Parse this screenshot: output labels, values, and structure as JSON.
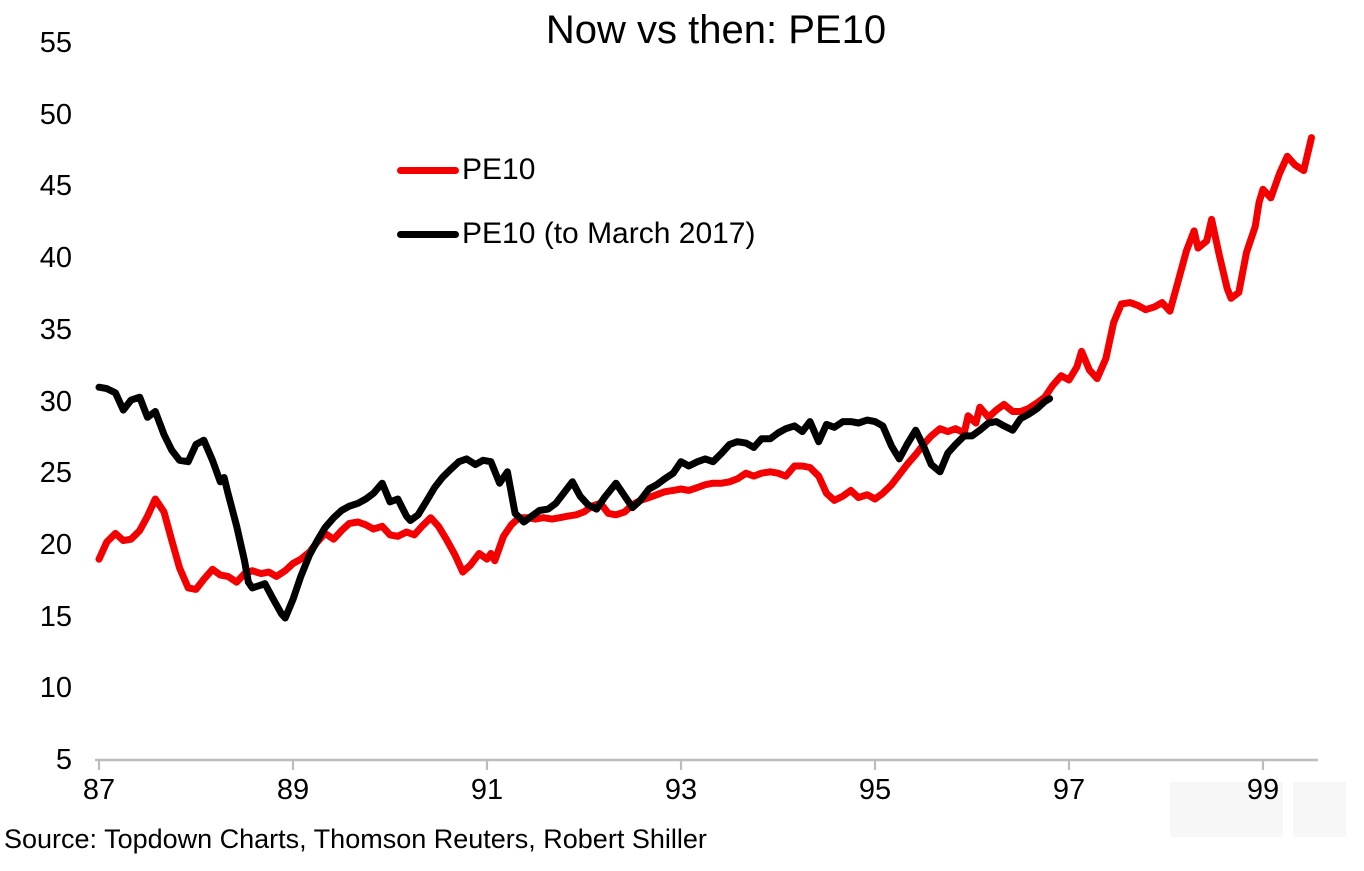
{
  "title": "Now vs then: PE10",
  "source": "Source: Topdown Charts, Thomson Reuters, Robert Shiller",
  "colors": {
    "pe10_now": "#f40000",
    "pe10_then": "#000000",
    "axis": "#bdbdbd",
    "text": "#000000"
  },
  "legend": {
    "items": [
      {
        "label": "PE10",
        "color": "#f40000"
      },
      {
        "label": "PE10 (to March 2017)",
        "color": "#000000"
      }
    ]
  },
  "chart_data": {
    "type": "line",
    "title": "Now vs then: PE10",
    "xlabel": "",
    "ylabel": "",
    "x_ticks": [
      87,
      89,
      91,
      93,
      95,
      97,
      99
    ],
    "y_ticks": [
      5,
      10,
      15,
      20,
      25,
      30,
      35,
      40,
      45,
      50,
      55
    ],
    "xlim": [
      87,
      99.6
    ],
    "ylim": [
      5,
      55
    ],
    "grid": false,
    "legend_position": "upper-left-inside",
    "series": [
      {
        "name": "PE10",
        "color": "#f40000",
        "points": [
          [
            87.0,
            19.0
          ],
          [
            87.08,
            20.2
          ],
          [
            87.17,
            20.8
          ],
          [
            87.25,
            20.3
          ],
          [
            87.33,
            20.4
          ],
          [
            87.42,
            21.0
          ],
          [
            87.5,
            22.0
          ],
          [
            87.58,
            23.2
          ],
          [
            87.67,
            22.3
          ],
          [
            87.75,
            20.3
          ],
          [
            87.83,
            18.4
          ],
          [
            87.92,
            17.0
          ],
          [
            88.0,
            16.9
          ],
          [
            88.08,
            17.6
          ],
          [
            88.17,
            18.3
          ],
          [
            88.25,
            17.9
          ],
          [
            88.33,
            17.8
          ],
          [
            88.42,
            17.4
          ],
          [
            88.5,
            18.0
          ],
          [
            88.58,
            18.2
          ],
          [
            88.67,
            18.0
          ],
          [
            88.75,
            18.1
          ],
          [
            88.83,
            17.8
          ],
          [
            88.92,
            18.2
          ],
          [
            89.0,
            18.7
          ],
          [
            89.08,
            19.0
          ],
          [
            89.17,
            19.5
          ],
          [
            89.25,
            20.2
          ],
          [
            89.33,
            20.8
          ],
          [
            89.42,
            20.4
          ],
          [
            89.5,
            21.0
          ],
          [
            89.58,
            21.5
          ],
          [
            89.67,
            21.6
          ],
          [
            89.75,
            21.4
          ],
          [
            89.83,
            21.1
          ],
          [
            89.92,
            21.3
          ],
          [
            90.0,
            20.7
          ],
          [
            90.08,
            20.6
          ],
          [
            90.17,
            20.9
          ],
          [
            90.25,
            20.7
          ],
          [
            90.33,
            21.3
          ],
          [
            90.42,
            21.9
          ],
          [
            90.5,
            21.3
          ],
          [
            90.58,
            20.4
          ],
          [
            90.67,
            19.3
          ],
          [
            90.75,
            18.1
          ],
          [
            90.83,
            18.6
          ],
          [
            90.92,
            19.4
          ],
          [
            91.0,
            19.0
          ],
          [
            91.04,
            19.4
          ],
          [
            91.08,
            18.9
          ],
          [
            91.17,
            20.6
          ],
          [
            91.25,
            21.4
          ],
          [
            91.33,
            21.9
          ],
          [
            91.42,
            21.9
          ],
          [
            91.5,
            21.8
          ],
          [
            91.58,
            21.9
          ],
          [
            91.67,
            21.8
          ],
          [
            91.75,
            21.9
          ],
          [
            91.83,
            22.0
          ],
          [
            91.92,
            22.1
          ],
          [
            92.0,
            22.3
          ],
          [
            92.08,
            22.7
          ],
          [
            92.17,
            22.9
          ],
          [
            92.25,
            22.2
          ],
          [
            92.33,
            22.1
          ],
          [
            92.42,
            22.3
          ],
          [
            92.5,
            22.8
          ],
          [
            92.58,
            23.1
          ],
          [
            92.67,
            23.3
          ],
          [
            92.75,
            23.5
          ],
          [
            92.83,
            23.7
          ],
          [
            92.92,
            23.8
          ],
          [
            93.0,
            23.9
          ],
          [
            93.08,
            23.8
          ],
          [
            93.17,
            24.0
          ],
          [
            93.25,
            24.2
          ],
          [
            93.33,
            24.3
          ],
          [
            93.42,
            24.3
          ],
          [
            93.5,
            24.4
          ],
          [
            93.58,
            24.6
          ],
          [
            93.67,
            25.0
          ],
          [
            93.75,
            24.8
          ],
          [
            93.83,
            25.0
          ],
          [
            93.92,
            25.1
          ],
          [
            94.0,
            25.0
          ],
          [
            94.08,
            24.8
          ],
          [
            94.17,
            25.5
          ],
          [
            94.25,
            25.5
          ],
          [
            94.33,
            25.4
          ],
          [
            94.42,
            24.8
          ],
          [
            94.5,
            23.6
          ],
          [
            94.58,
            23.1
          ],
          [
            94.67,
            23.4
          ],
          [
            94.75,
            23.8
          ],
          [
            94.83,
            23.3
          ],
          [
            94.92,
            23.5
          ],
          [
            95.0,
            23.2
          ],
          [
            95.08,
            23.6
          ],
          [
            95.17,
            24.2
          ],
          [
            95.25,
            24.9
          ],
          [
            95.33,
            25.6
          ],
          [
            95.42,
            26.3
          ],
          [
            95.5,
            27.0
          ],
          [
            95.58,
            27.6
          ],
          [
            95.67,
            28.1
          ],
          [
            95.75,
            27.9
          ],
          [
            95.83,
            28.1
          ],
          [
            95.92,
            27.8
          ],
          [
            95.96,
            29.0
          ],
          [
            96.04,
            28.5
          ],
          [
            96.08,
            29.6
          ],
          [
            96.17,
            28.9
          ],
          [
            96.25,
            29.4
          ],
          [
            96.33,
            29.8
          ],
          [
            96.42,
            29.3
          ],
          [
            96.5,
            29.3
          ],
          [
            96.58,
            29.5
          ],
          [
            96.67,
            29.9
          ],
          [
            96.75,
            30.3
          ],
          [
            96.83,
            31.1
          ],
          [
            96.92,
            31.8
          ],
          [
            97.0,
            31.5
          ],
          [
            97.08,
            32.4
          ],
          [
            97.13,
            33.5
          ],
          [
            97.21,
            32.2
          ],
          [
            97.29,
            31.6
          ],
          [
            97.38,
            33.0
          ],
          [
            97.46,
            35.5
          ],
          [
            97.54,
            36.8
          ],
          [
            97.63,
            36.9
          ],
          [
            97.71,
            36.7
          ],
          [
            97.79,
            36.4
          ],
          [
            97.88,
            36.6
          ],
          [
            97.96,
            36.9
          ],
          [
            98.04,
            36.3
          ],
          [
            98.13,
            38.5
          ],
          [
            98.21,
            40.5
          ],
          [
            98.29,
            41.9
          ],
          [
            98.33,
            40.7
          ],
          [
            98.42,
            41.2
          ],
          [
            98.47,
            42.7
          ],
          [
            98.55,
            40.2
          ],
          [
            98.63,
            37.9
          ],
          [
            98.67,
            37.2
          ],
          [
            98.75,
            37.6
          ],
          [
            98.83,
            40.4
          ],
          [
            98.92,
            42.2
          ],
          [
            98.96,
            43.9
          ],
          [
            99.0,
            44.8
          ],
          [
            99.08,
            44.2
          ],
          [
            99.17,
            45.9
          ],
          [
            99.25,
            47.1
          ],
          [
            99.33,
            46.5
          ],
          [
            99.42,
            46.1
          ],
          [
            99.5,
            48.4
          ]
        ]
      },
      {
        "name": "PE10 (to March 2017)",
        "color": "#000000",
        "points": [
          [
            87.0,
            31.0
          ],
          [
            87.08,
            30.9
          ],
          [
            87.17,
            30.6
          ],
          [
            87.25,
            29.4
          ],
          [
            87.33,
            30.1
          ],
          [
            87.42,
            30.3
          ],
          [
            87.5,
            28.9
          ],
          [
            87.58,
            29.3
          ],
          [
            87.67,
            27.7
          ],
          [
            87.75,
            26.6
          ],
          [
            87.83,
            25.9
          ],
          [
            87.92,
            25.8
          ],
          [
            88.0,
            27.0
          ],
          [
            88.08,
            27.3
          ],
          [
            88.17,
            25.9
          ],
          [
            88.25,
            24.4
          ],
          [
            88.29,
            24.7
          ],
          [
            88.33,
            23.6
          ],
          [
            88.42,
            21.3
          ],
          [
            88.5,
            18.9
          ],
          [
            88.54,
            17.4
          ],
          [
            88.58,
            17.0
          ],
          [
            88.67,
            17.2
          ],
          [
            88.71,
            17.3
          ],
          [
            88.79,
            16.3
          ],
          [
            88.88,
            15.2
          ],
          [
            88.92,
            14.9
          ],
          [
            89.0,
            16.2
          ],
          [
            89.08,
            17.8
          ],
          [
            89.17,
            19.3
          ],
          [
            89.25,
            20.3
          ],
          [
            89.33,
            21.2
          ],
          [
            89.42,
            21.9
          ],
          [
            89.5,
            22.4
          ],
          [
            89.58,
            22.7
          ],
          [
            89.67,
            22.9
          ],
          [
            89.75,
            23.2
          ],
          [
            89.83,
            23.6
          ],
          [
            89.92,
            24.3
          ],
          [
            90.0,
            23.0
          ],
          [
            90.08,
            23.2
          ],
          [
            90.17,
            22.0
          ],
          [
            90.21,
            21.7
          ],
          [
            90.29,
            22.1
          ],
          [
            90.38,
            23.1
          ],
          [
            90.46,
            24.0
          ],
          [
            90.54,
            24.7
          ],
          [
            90.63,
            25.3
          ],
          [
            90.71,
            25.8
          ],
          [
            90.79,
            26.0
          ],
          [
            90.88,
            25.6
          ],
          [
            90.96,
            25.9
          ],
          [
            91.04,
            25.8
          ],
          [
            91.13,
            24.3
          ],
          [
            91.21,
            25.1
          ],
          [
            91.29,
            22.2
          ],
          [
            91.38,
            21.6
          ],
          [
            91.46,
            22.0
          ],
          [
            91.54,
            22.4
          ],
          [
            91.63,
            22.5
          ],
          [
            91.71,
            22.9
          ],
          [
            91.79,
            23.6
          ],
          [
            91.88,
            24.4
          ],
          [
            91.96,
            23.4
          ],
          [
            92.04,
            22.8
          ],
          [
            92.13,
            22.5
          ],
          [
            92.21,
            23.3
          ],
          [
            92.33,
            24.3
          ],
          [
            92.42,
            23.4
          ],
          [
            92.5,
            22.6
          ],
          [
            92.58,
            23.1
          ],
          [
            92.67,
            23.9
          ],
          [
            92.75,
            24.2
          ],
          [
            92.83,
            24.6
          ],
          [
            92.92,
            25.0
          ],
          [
            93.0,
            25.8
          ],
          [
            93.08,
            25.5
          ],
          [
            93.17,
            25.8
          ],
          [
            93.25,
            26.0
          ],
          [
            93.33,
            25.8
          ],
          [
            93.42,
            26.4
          ],
          [
            93.5,
            27.0
          ],
          [
            93.58,
            27.2
          ],
          [
            93.67,
            27.1
          ],
          [
            93.75,
            26.8
          ],
          [
            93.83,
            27.4
          ],
          [
            93.92,
            27.4
          ],
          [
            94.0,
            27.8
          ],
          [
            94.08,
            28.1
          ],
          [
            94.17,
            28.3
          ],
          [
            94.25,
            27.9
          ],
          [
            94.33,
            28.6
          ],
          [
            94.42,
            27.2
          ],
          [
            94.5,
            28.4
          ],
          [
            94.58,
            28.2
          ],
          [
            94.67,
            28.6
          ],
          [
            94.75,
            28.6
          ],
          [
            94.83,
            28.5
          ],
          [
            94.92,
            28.7
          ],
          [
            95.0,
            28.6
          ],
          [
            95.08,
            28.3
          ],
          [
            95.17,
            26.9
          ],
          [
            95.25,
            26.0
          ],
          [
            95.33,
            27.0
          ],
          [
            95.42,
            28.0
          ],
          [
            95.5,
            26.9
          ],
          [
            95.58,
            25.6
          ],
          [
            95.67,
            25.1
          ],
          [
            95.75,
            26.4
          ],
          [
            95.83,
            27.0
          ],
          [
            95.92,
            27.6
          ],
          [
            96.0,
            27.6
          ],
          [
            96.08,
            28.0
          ],
          [
            96.17,
            28.5
          ],
          [
            96.25,
            28.6
          ],
          [
            96.33,
            28.3
          ],
          [
            96.42,
            28.0
          ],
          [
            96.5,
            28.8
          ],
          [
            96.58,
            29.1
          ],
          [
            96.67,
            29.5
          ],
          [
            96.75,
            30.0
          ],
          [
            96.8,
            30.2
          ]
        ]
      }
    ]
  }
}
